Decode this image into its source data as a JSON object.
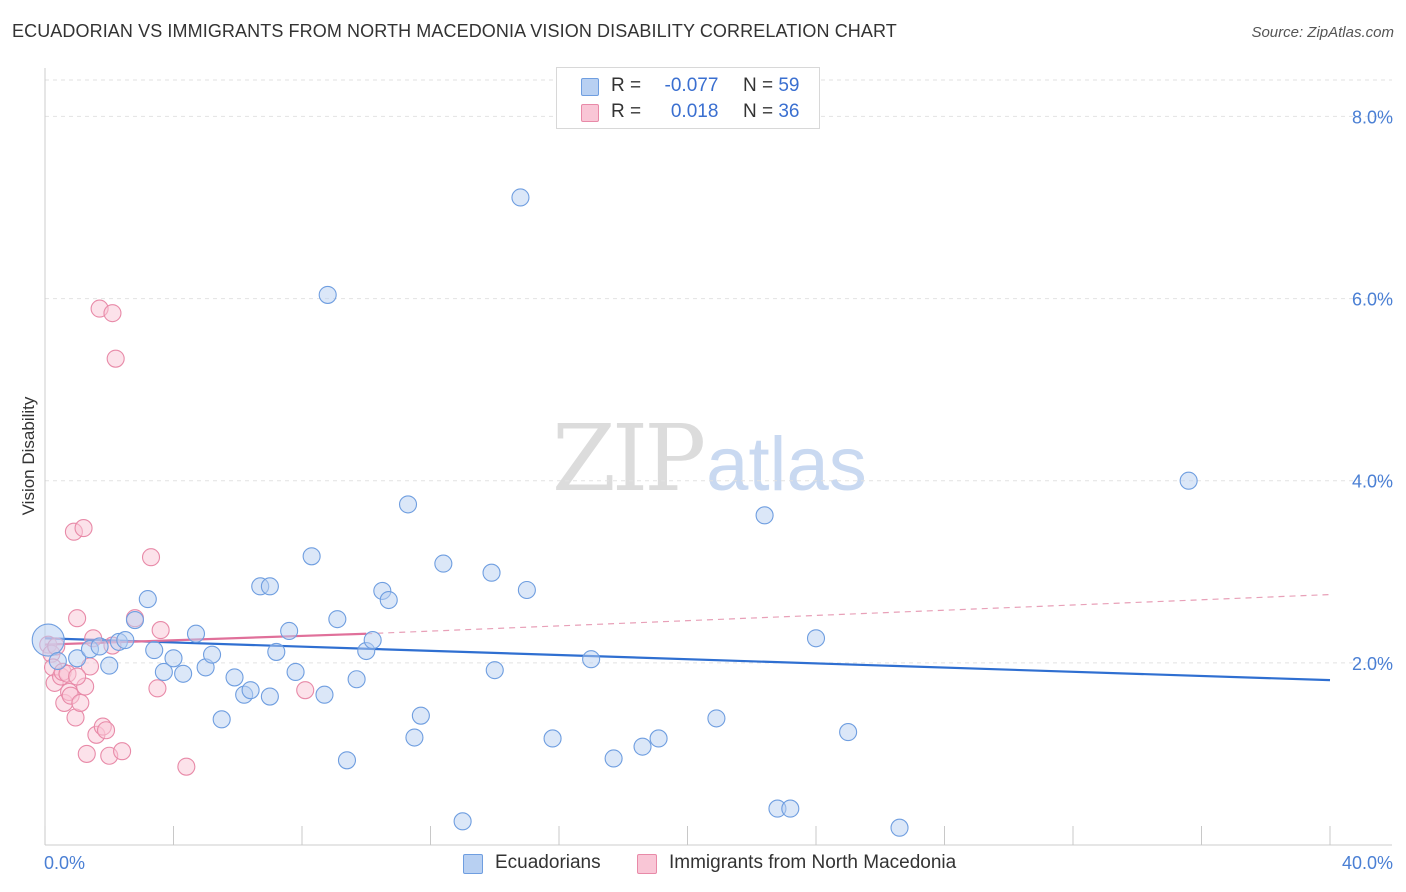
{
  "header": {
    "title": "ECUADORIAN VS IMMIGRANTS FROM NORTH MACEDONIA VISION DISABILITY CORRELATION CHART",
    "source": "Source: ZipAtlas.com"
  },
  "watermark": {
    "zip": "ZIP",
    "atlas": "atlas"
  },
  "legend": {
    "rows": [
      {
        "r_label": "R =",
        "r_value": "-0.077",
        "n_label": "N =",
        "n_value": "59",
        "color": "#b8d0f2",
        "border": "#6f9ee0"
      },
      {
        "r_label": "R =",
        "r_value": "0.018",
        "n_label": "N =",
        "n_value": "36",
        "color": "#f9c6d6",
        "border": "#e88aa8"
      }
    ]
  },
  "bottom_legend": {
    "items": [
      {
        "label": "Ecuadorians",
        "color": "#b8d0f2",
        "border": "#6f9ee0"
      },
      {
        "label": "Immigrants from North Macedonia",
        "color": "#f9c6d6",
        "border": "#e88aa8"
      }
    ]
  },
  "chart_data": {
    "type": "scatter",
    "title": "ECUADORIAN VS IMMIGRANTS FROM NORTH MACEDONIA VISION DISABILITY CORRELATION CHART",
    "xlabel": "",
    "ylabel": "Vision Disability",
    "xlim": [
      0,
      40
    ],
    "ylim": [
      0,
      8.4
    ],
    "x_tick_labels": [
      "0.0%",
      "40.0%"
    ],
    "y_ticks": [
      2,
      4,
      6,
      8
    ],
    "y_tick_labels": [
      "2.0%",
      "4.0%",
      "6.0%",
      "8.0%"
    ],
    "grid": true,
    "legend_position": "top-center",
    "series": [
      {
        "name": "Ecuadorians",
        "color": "#6f9ee0",
        "fill": "#b8d0f2",
        "r": -0.077,
        "n": 59,
        "trend": {
          "x": [
            0,
            40
          ],
          "y": [
            2.27,
            1.81
          ],
          "dashed_to": null
        },
        "points": [
          [
            0.1,
            2.25
          ],
          [
            0.4,
            2.02
          ],
          [
            1.0,
            2.05
          ],
          [
            1.4,
            2.15
          ],
          [
            1.7,
            2.18
          ],
          [
            2.0,
            1.97
          ],
          [
            2.3,
            2.23
          ],
          [
            2.5,
            2.25
          ],
          [
            2.8,
            2.47
          ],
          [
            3.2,
            2.7
          ],
          [
            3.4,
            2.14
          ],
          [
            3.7,
            1.9
          ],
          [
            4.0,
            2.05
          ],
          [
            4.3,
            1.88
          ],
          [
            4.7,
            2.32
          ],
          [
            5.0,
            1.95
          ],
          [
            5.2,
            2.09
          ],
          [
            5.5,
            1.38
          ],
          [
            5.9,
            1.84
          ],
          [
            6.2,
            1.65
          ],
          [
            6.4,
            1.7
          ],
          [
            6.7,
            2.84
          ],
          [
            7.0,
            1.63
          ],
          [
            7.2,
            2.12
          ],
          [
            7.6,
            2.35
          ],
          [
            7.8,
            1.9
          ],
          [
            8.3,
            3.17
          ],
          [
            8.7,
            1.65
          ],
          [
            8.8,
            6.04
          ],
          [
            9.1,
            2.48
          ],
          [
            9.4,
            0.93
          ],
          [
            9.7,
            1.82
          ],
          [
            10.0,
            2.13
          ],
          [
            10.2,
            2.25
          ],
          [
            10.5,
            2.79
          ],
          [
            10.7,
            2.69
          ],
          [
            11.3,
            3.74
          ],
          [
            11.5,
            1.18
          ],
          [
            11.7,
            1.42
          ],
          [
            12.4,
            3.09
          ],
          [
            13.0,
            0.26
          ],
          [
            13.9,
            2.99
          ],
          [
            14.0,
            1.92
          ],
          [
            14.8,
            7.11
          ],
          [
            15.0,
            2.8
          ],
          [
            15.8,
            1.17
          ],
          [
            17.0,
            2.04
          ],
          [
            17.7,
            0.95
          ],
          [
            18.6,
            1.08
          ],
          [
            19.1,
            1.17
          ],
          [
            20.9,
            1.39
          ],
          [
            22.4,
            3.62
          ],
          [
            22.8,
            0.4
          ],
          [
            23.2,
            0.4
          ],
          [
            24.0,
            2.27
          ],
          [
            25.0,
            1.24
          ],
          [
            26.6,
            0.19
          ],
          [
            35.6,
            4.0
          ],
          [
            7.0,
            2.84
          ]
        ],
        "large_points": [
          [
            0.1,
            2.25
          ]
        ]
      },
      {
        "name": "Immigrants from North Macedonia",
        "color": "#e88aa8",
        "fill": "#f9c6d6",
        "r": 0.018,
        "n": 36,
        "trend": {
          "x": [
            0,
            10
          ],
          "y": [
            2.2,
            2.32
          ],
          "dashed_to": [
            40,
            2.75
          ]
        },
        "points": [
          [
            0.1,
            2.2
          ],
          [
            0.2,
            2.1
          ],
          [
            0.25,
            1.95
          ],
          [
            0.3,
            1.78
          ],
          [
            0.35,
            2.18
          ],
          [
            0.5,
            1.85
          ],
          [
            0.55,
            1.9
          ],
          [
            0.6,
            1.56
          ],
          [
            0.7,
            1.88
          ],
          [
            0.75,
            1.68
          ],
          [
            0.8,
            1.64
          ],
          [
            0.9,
            3.44
          ],
          [
            0.95,
            1.4
          ],
          [
            1.0,
            2.49
          ],
          [
            1.1,
            1.56
          ],
          [
            1.2,
            3.48
          ],
          [
            1.25,
            1.74
          ],
          [
            1.3,
            1.0
          ],
          [
            1.4,
            1.96
          ],
          [
            1.5,
            2.27
          ],
          [
            1.6,
            1.21
          ],
          [
            1.7,
            5.89
          ],
          [
            1.8,
            1.3
          ],
          [
            1.9,
            1.26
          ],
          [
            2.0,
            0.98
          ],
          [
            2.1,
            5.84
          ],
          [
            2.2,
            5.34
          ],
          [
            2.4,
            1.03
          ],
          [
            2.8,
            2.49
          ],
          [
            3.3,
            3.16
          ],
          [
            3.5,
            1.72
          ],
          [
            3.6,
            2.36
          ],
          [
            4.4,
            0.86
          ],
          [
            8.1,
            1.7
          ],
          [
            2.1,
            2.19
          ],
          [
            1.0,
            1.85
          ]
        ]
      }
    ]
  }
}
